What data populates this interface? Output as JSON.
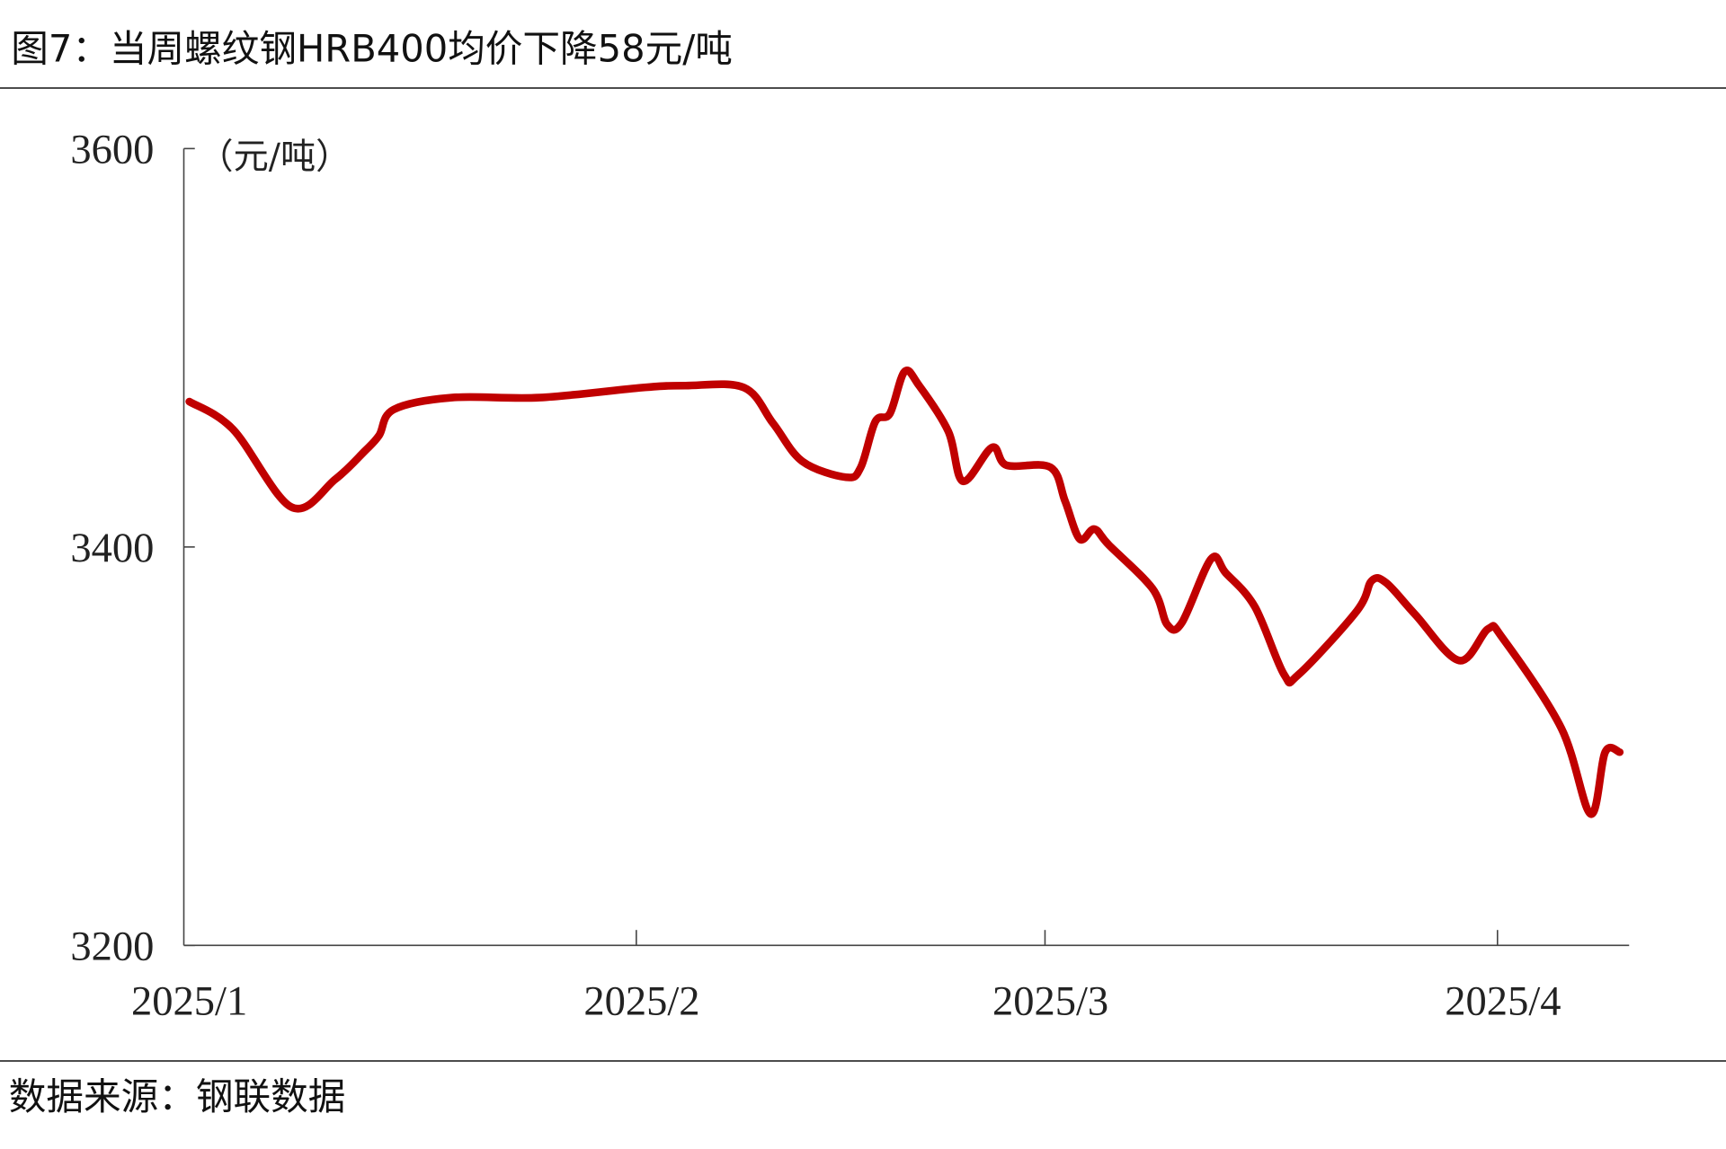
{
  "title": "图7：当周螺纹钢HRB400均价下降58元/吨",
  "source": "数据来源：钢联数据",
  "chart_data": {
    "type": "line",
    "title": "图7：当周螺纹钢HRB400均价下降58元/吨",
    "ylabel": "（元/吨）",
    "xlabel": "",
    "ylim": [
      3200,
      3600
    ],
    "yticks": [
      "3600",
      "3400",
      "3200"
    ],
    "xticks": [
      {
        "label": "2025/1",
        "date": "2025-01-01"
      },
      {
        "label": "2025/2",
        "date": "2025-02-01"
      },
      {
        "label": "2025/3",
        "date": "2025-03-01"
      },
      {
        "label": "2025/4",
        "date": "2025-04-01"
      }
    ],
    "grid": false,
    "color": "#c00000",
    "series": [
      {
        "x": [
          "2025-01-01",
          "2025-01-04",
          "2025-01-08",
          "2025-01-11",
          "2025-01-13",
          "2025-01-14",
          "2025-01-15",
          "2025-01-19",
          "2025-01-25",
          "2025-02-01",
          "2025-02-04",
          "2025-02-08",
          "2025-02-10",
          "2025-02-12",
          "2025-02-15",
          "2025-02-16",
          "2025-02-17",
          "2025-02-18",
          "2025-02-19",
          "2025-02-20",
          "2025-02-22",
          "2025-02-23",
          "2025-02-25",
          "2025-02-26",
          "2025-03-01",
          "2025-03-02",
          "2025-03-03",
          "2025-03-04",
          "2025-03-05",
          "2025-03-08",
          "2025-03-09",
          "2025-03-10",
          "2025-03-12",
          "2025-03-13",
          "2025-03-15",
          "2025-03-17",
          "2025-03-18",
          "2025-03-22",
          "2025-03-23",
          "2025-03-24",
          "2025-03-26",
          "2025-03-29",
          "2025-03-31",
          "2025-04-01",
          "2025-04-05",
          "2025-04-07",
          "2025-04-08",
          "2025-04-09"
        ],
        "y": [
          3473,
          3459,
          3420,
          3434,
          3448,
          3456,
          3469,
          3475,
          3475,
          3480,
          3481,
          3480,
          3462,
          3443,
          3435,
          3440,
          3463,
          3467,
          3488,
          3481,
          3458,
          3433,
          3450,
          3441,
          3440,
          3423,
          3404,
          3409,
          3401,
          3379,
          3361,
          3362,
          3394,
          3387,
          3370,
          3336,
          3336,
          3368,
          3383,
          3382,
          3366,
          3343,
          3359,
          3354,
          3309,
          3266,
          3297,
          3297
        ]
      }
    ]
  }
}
